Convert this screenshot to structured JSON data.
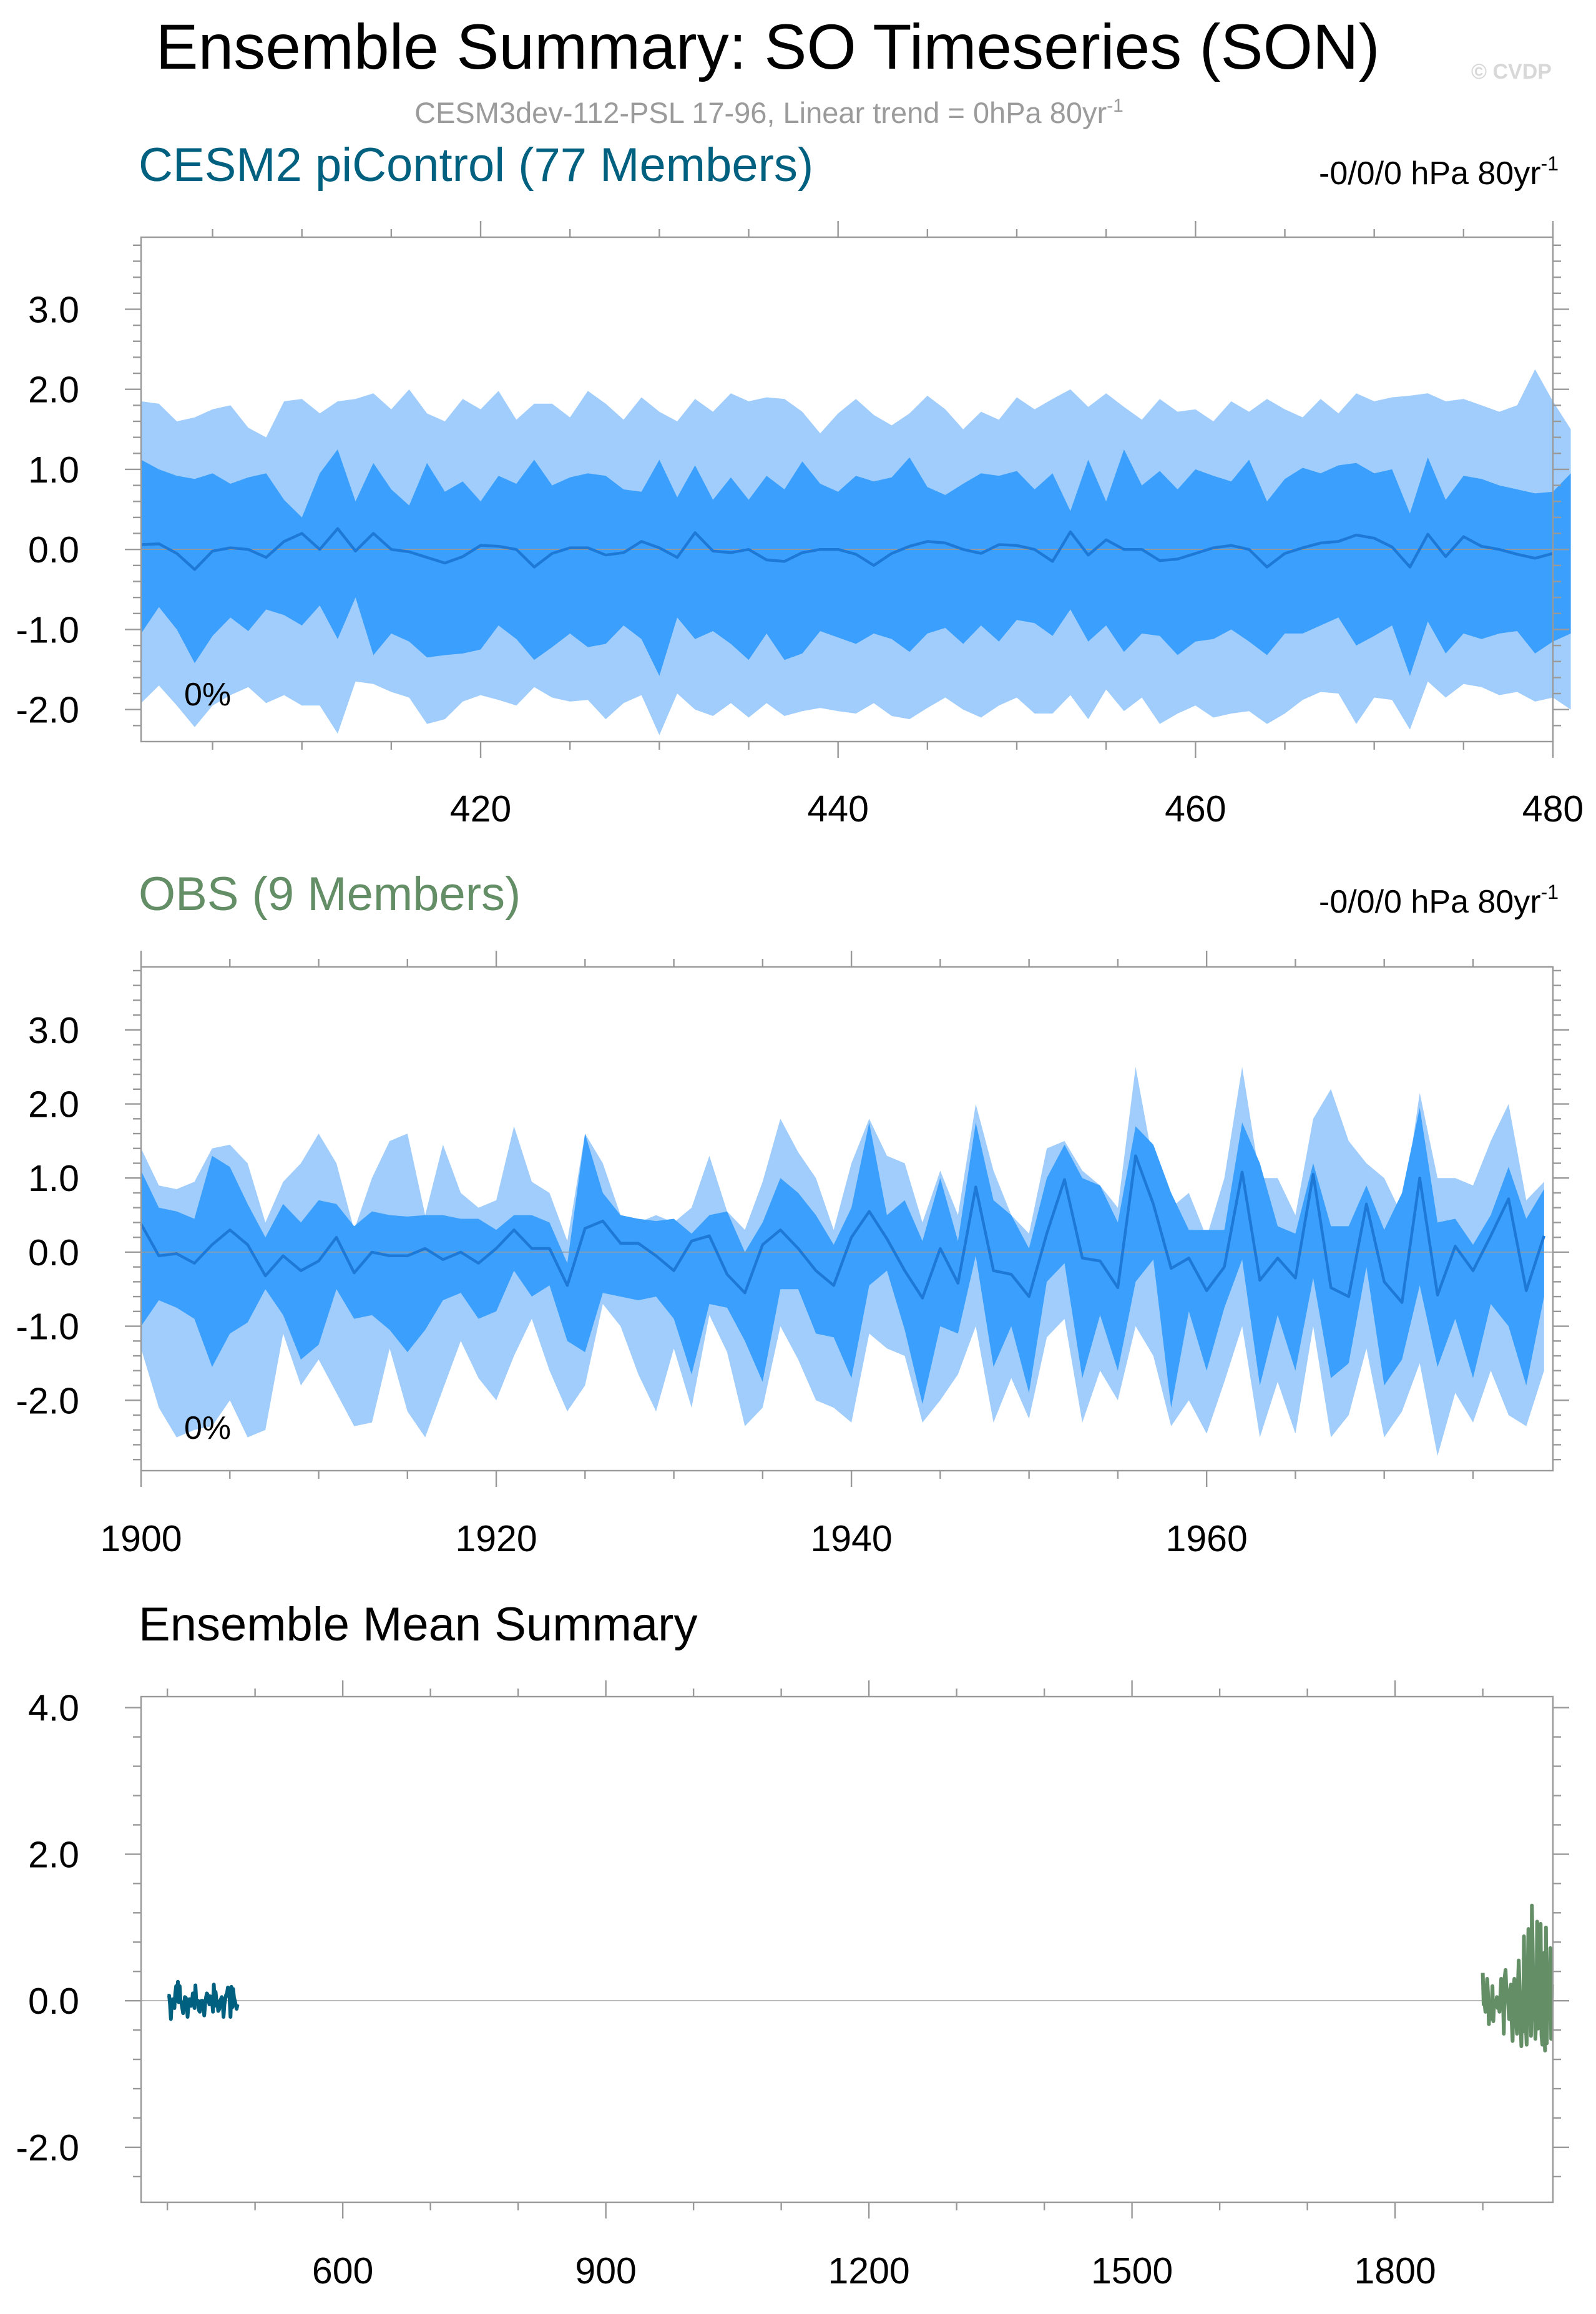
{
  "title": "Ensemble Summary: SO Timeseries (SON)",
  "subtitle": "CESM3dev-112-PSL 17-96, Linear trend = 0hPa 80yr",
  "subtitle_sup": "-1",
  "watermark": "© CVDP",
  "chart_data": [
    {
      "type": "area",
      "title": "CESM2 piControl (77 Members)",
      "title_color": "#00607f",
      "trend_label": "-0/0/0 hPa 80yr",
      "trend_sup": "-1",
      "percent_label": "0%",
      "xlim": [
        401,
        480
      ],
      "ylim": [
        -2.4,
        3.9
      ],
      "x_ticks": [
        420,
        440,
        460,
        480
      ],
      "x_ticklabels": [
        "420",
        "440",
        "460",
        "480"
      ],
      "y_ticks": [
        3.0,
        2.0,
        1.0,
        0.0,
        -1.0,
        -2.0
      ],
      "y_ticklabels": [
        "3.0",
        "2.0",
        "1.0",
        "0.0",
        "-1.0",
        "-2.0"
      ],
      "x_start": 401,
      "colors": {
        "outer": "#a0cdfb",
        "inner": "#3ba0fd",
        "mean": "#1e78d6"
      },
      "series": [
        {
          "name": "mean",
          "values": [
            0.06,
            0.07,
            -0.05,
            -0.25,
            -0.02,
            0.02,
            0.0,
            -0.1,
            0.1,
            0.2,
            0.0,
            0.26,
            -0.02,
            0.2,
            0.0,
            -0.03,
            -0.1,
            -0.17,
            -0.09,
            0.05,
            0.04,
            0.0,
            -0.22,
            -0.05,
            0.02,
            0.02,
            -0.07,
            -0.04,
            0.1,
            0.02,
            -0.1,
            0.21,
            -0.02,
            -0.04,
            0.0,
            -0.13,
            -0.15,
            -0.04,
            0.0,
            0.0,
            -0.06,
            -0.2,
            -0.05,
            0.04,
            0.1,
            0.08,
            0.0,
            -0.05,
            0.06,
            0.05,
            0.0,
            -0.15,
            0.22,
            -0.07,
            0.12,
            0.0,
            0.0,
            -0.14,
            -0.12,
            -0.05,
            0.02,
            0.05,
            0.0,
            -0.22,
            -0.05,
            0.02,
            0.08,
            0.1,
            0.18,
            0.14,
            0.03,
            -0.22,
            0.19,
            -0.09,
            0.16,
            0.04,
            0.0,
            -0.06,
            -0.11,
            -0.05
          ]
        },
        {
          "name": "outer_upper",
          "values": [
            1.85,
            1.82,
            1.6,
            1.65,
            1.75,
            1.8,
            1.52,
            1.4,
            1.85,
            1.88,
            1.7,
            1.85,
            1.88,
            1.95,
            1.75,
            2.0,
            1.7,
            1.6,
            1.88,
            1.75,
            1.98,
            1.62,
            1.82,
            1.82,
            1.65,
            1.98,
            1.82,
            1.62,
            1.9,
            1.72,
            1.6,
            1.88,
            1.72,
            1.95,
            1.85,
            1.9,
            1.88,
            1.72,
            1.45,
            1.7,
            1.88,
            1.68,
            1.55,
            1.7,
            1.92,
            1.75,
            1.5,
            1.72,
            1.62,
            1.9,
            1.75,
            1.88,
            2.0,
            1.78,
            1.95,
            1.78,
            1.62,
            1.88,
            1.72,
            1.75,
            1.6,
            1.85,
            1.72,
            1.88,
            1.75,
            1.65,
            1.88,
            1.7,
            1.95,
            1.85,
            1.9,
            1.92,
            1.95,
            1.85,
            1.88,
            1.8,
            1.72,
            1.8,
            2.25,
            1.85,
            1.5
          ]
        },
        {
          "name": "inner_upper",
          "values": [
            1.12,
            1.0,
            0.92,
            0.88,
            0.95,
            0.82,
            0.9,
            0.95,
            0.62,
            0.4,
            0.95,
            1.25,
            0.6,
            1.08,
            0.75,
            0.55,
            1.08,
            0.72,
            0.85,
            0.6,
            0.92,
            0.82,
            1.12,
            0.8,
            0.9,
            0.95,
            0.92,
            0.75,
            0.72,
            1.12,
            0.65,
            1.05,
            0.62,
            0.9,
            0.62,
            0.92,
            0.75,
            1.1,
            0.82,
            0.72,
            0.92,
            0.85,
            0.9,
            1.15,
            0.78,
            0.68,
            0.82,
            0.95,
            0.92,
            0.98,
            0.75,
            0.95,
            0.48,
            1.12,
            0.6,
            1.25,
            0.8,
            0.98,
            0.75,
            1.0,
            0.92,
            0.85,
            1.12,
            0.6,
            0.88,
            1.02,
            0.95,
            1.05,
            1.08,
            0.95,
            1.0,
            0.45,
            1.15,
            0.62,
            0.92,
            0.88,
            0.8,
            0.75,
            0.7,
            0.72,
            0.95
          ]
        },
        {
          "name": "inner_lower",
          "values": [
            -1.05,
            -0.72,
            -1.0,
            -1.42,
            -1.08,
            -0.85,
            -1.02,
            -0.75,
            -0.82,
            -0.95,
            -0.7,
            -1.12,
            -0.6,
            -1.32,
            -1.05,
            -1.15,
            -1.35,
            -1.32,
            -1.3,
            -1.25,
            -0.95,
            -1.12,
            -1.38,
            -1.22,
            -1.05,
            -1.22,
            -1.18,
            -0.95,
            -1.12,
            -1.58,
            -0.85,
            -1.12,
            -1.02,
            -1.18,
            -1.38,
            -1.05,
            -1.38,
            -1.3,
            -1.02,
            -1.1,
            -1.18,
            -1.05,
            -1.12,
            -1.28,
            -1.05,
            -0.98,
            -1.18,
            -0.95,
            -1.15,
            -0.88,
            -0.92,
            -1.08,
            -0.75,
            -1.15,
            -0.95,
            -1.28,
            -1.05,
            -1.08,
            -1.32,
            -1.15,
            -1.12,
            -1.0,
            -1.15,
            -1.32,
            -1.05,
            -1.05,
            -0.95,
            -0.85,
            -1.2,
            -1.08,
            -0.95,
            -1.58,
            -0.9,
            -1.3,
            -1.05,
            -1.12,
            -1.05,
            -1.02,
            -1.3,
            -1.15,
            -1.05
          ]
        },
        {
          "name": "outer_lower",
          "values": [
            -1.92,
            -1.7,
            -1.95,
            -2.22,
            -1.95,
            -1.82,
            -1.72,
            -1.92,
            -1.82,
            -1.95,
            -1.95,
            -2.3,
            -1.65,
            -1.68,
            -1.78,
            -1.85,
            -2.18,
            -2.12,
            -1.9,
            -1.82,
            -1.88,
            -1.95,
            -1.72,
            -1.85,
            -1.9,
            -1.88,
            -2.12,
            -1.92,
            -1.82,
            -2.32,
            -1.8,
            -2.0,
            -2.08,
            -1.92,
            -2.1,
            -1.92,
            -2.08,
            -2.02,
            -1.98,
            -2.02,
            -2.05,
            -1.92,
            -2.08,
            -2.12,
            -1.98,
            -1.85,
            -2.0,
            -2.1,
            -1.95,
            -1.85,
            -2.05,
            -2.05,
            -1.82,
            -2.12,
            -1.75,
            -2.02,
            -1.85,
            -2.18,
            -2.05,
            -1.95,
            -2.1,
            -2.05,
            -2.02,
            -2.18,
            -2.05,
            -1.88,
            -1.78,
            -1.8,
            -2.18,
            -1.85,
            -1.88,
            -2.25,
            -1.65,
            -1.85,
            -1.68,
            -1.72,
            -1.82,
            -1.78,
            -1.9,
            -1.85,
            -2.0
          ]
        }
      ]
    },
    {
      "type": "area",
      "title": "OBS (9 Members)",
      "title_color": "#638e66",
      "trend_label": "-0/0/0 hPa 80yr",
      "trend_sup": "-1",
      "percent_label": "0%",
      "xlim": [
        1900,
        1979.5
      ],
      "ylim": [
        -2.95,
        3.85
      ],
      "x_ticks": [
        1900,
        1920,
        1940,
        1960
      ],
      "x_ticklabels": [
        "1900",
        "1920",
        "1940",
        "1960"
      ],
      "y_ticks": [
        3.0,
        2.0,
        1.0,
        0.0,
        -1.0,
        -2.0
      ],
      "y_ticklabels": [
        "3.0",
        "2.0",
        "1.0",
        "0.0",
        "-1.0",
        "-2.0"
      ],
      "x_start": 1900,
      "colors": {
        "outer": "#a0cdfb",
        "inner": "#3ba0fd",
        "mean": "#1e78d6"
      },
      "series": [
        {
          "name": "mean",
          "values": [
            0.38,
            -0.05,
            -0.02,
            -0.15,
            0.1,
            0.3,
            0.1,
            -0.32,
            -0.05,
            -0.25,
            -0.12,
            0.2,
            -0.28,
            0.0,
            -0.05,
            -0.05,
            0.05,
            -0.1,
            0.0,
            -0.15,
            0.05,
            0.3,
            0.05,
            0.05,
            -0.45,
            0.32,
            0.42,
            0.12,
            0.12,
            -0.05,
            -0.25,
            0.15,
            0.22,
            -0.3,
            -0.55,
            0.1,
            0.3,
            0.05,
            -0.25,
            -0.45,
            0.2,
            0.55,
            0.18,
            -0.25,
            -0.62,
            0.05,
            -0.42,
            0.88,
            -0.25,
            -0.3,
            -0.6,
            0.25,
            0.98,
            -0.08,
            -0.12,
            -0.48,
            1.3,
            0.65,
            -0.22,
            -0.08,
            -0.52,
            -0.2,
            1.08,
            -0.38,
            -0.08,
            -0.35,
            1.05,
            -0.48,
            -0.6,
            0.65,
            -0.4,
            -0.68,
            1.0,
            -0.58,
            0.08,
            -0.25,
            0.22,
            0.72,
            -0.52,
            0.22
          ]
        },
        {
          "name": "outer_upper",
          "values": [
            1.4,
            0.9,
            0.85,
            0.95,
            1.4,
            1.45,
            1.2,
            0.4,
            0.95,
            1.2,
            1.6,
            1.2,
            0.3,
            1.0,
            1.5,
            1.6,
            0.5,
            1.45,
            0.8,
            0.6,
            0.7,
            1.7,
            0.95,
            0.8,
            0.15,
            1.6,
            1.2,
            0.5,
            0.4,
            0.5,
            0.4,
            0.6,
            1.3,
            0.55,
            0.3,
            0.95,
            1.8,
            1.35,
            1.0,
            0.3,
            1.2,
            1.8,
            1.3,
            1.2,
            0.4,
            1.1,
            0.5,
            2.0,
            1.1,
            0.5,
            0.25,
            1.4,
            1.5,
            1.1,
            0.9,
            0.6,
            2.5,
            1.2,
            0.6,
            0.8,
            0.2,
            1.0,
            2.5,
            1.0,
            1.0,
            0.5,
            1.8,
            2.2,
            1.5,
            1.2,
            1.0,
            0.5,
            2.15,
            1.0,
            1.0,
            0.9,
            1.5,
            2.0,
            0.7,
            0.95
          ]
        },
        {
          "name": "inner_upper",
          "values": [
            1.1,
            0.6,
            0.55,
            0.45,
            1.3,
            1.15,
            0.65,
            0.2,
            0.65,
            0.4,
            0.7,
            0.65,
            0.35,
            0.55,
            0.5,
            0.48,
            0.5,
            0.5,
            0.45,
            0.45,
            0.3,
            0.5,
            0.5,
            0.4,
            -0.15,
            1.6,
            0.8,
            0.5,
            0.45,
            0.42,
            0.45,
            0.25,
            0.5,
            0.55,
            0.0,
            0.4,
            1.0,
            0.8,
            0.5,
            0.1,
            0.6,
            1.75,
            0.5,
            0.7,
            0.15,
            1.0,
            0.15,
            1.75,
            0.7,
            0.5,
            0.05,
            1.0,
            1.45,
            1.0,
            0.9,
            0.4,
            1.7,
            1.45,
            0.8,
            0.3,
            0.3,
            0.3,
            1.75,
            1.2,
            0.35,
            0.25,
            1.2,
            0.35,
            0.35,
            0.9,
            0.3,
            0.8,
            1.95,
            0.4,
            0.45,
            0.1,
            0.5,
            1.15,
            0.45,
            0.85
          ]
        },
        {
          "name": "inner_lower",
          "values": [
            -1.0,
            -0.65,
            -0.75,
            -0.9,
            -1.55,
            -1.1,
            -0.95,
            -0.5,
            -0.85,
            -1.45,
            -1.25,
            -0.5,
            -0.9,
            -0.85,
            -1.05,
            -1.35,
            -1.05,
            -0.65,
            -0.55,
            -0.9,
            -0.8,
            -0.25,
            -0.6,
            -0.45,
            -1.2,
            -1.35,
            -0.55,
            -0.6,
            -0.65,
            -0.6,
            -0.9,
            -1.65,
            -0.7,
            -0.75,
            -1.2,
            -1.75,
            -0.5,
            -0.5,
            -1.1,
            -1.15,
            -1.7,
            -0.45,
            -0.25,
            -1.05,
            -2.05,
            -1.0,
            -1.1,
            -0.05,
            -1.55,
            -1.0,
            -1.9,
            -0.4,
            -0.15,
            -1.7,
            -0.85,
            -1.6,
            -0.4,
            -0.1,
            -2.1,
            -0.8,
            -1.6,
            -0.75,
            -0.1,
            -1.8,
            -0.85,
            -1.6,
            -0.35,
            -1.7,
            -1.5,
            -0.2,
            -1.8,
            -1.45,
            -0.45,
            -1.55,
            -0.9,
            -1.7,
            -0.7,
            -1.0,
            -1.8,
            -0.6
          ]
        },
        {
          "name": "outer_lower",
          "values": [
            -1.3,
            -2.1,
            -2.5,
            -2.4,
            -2.35,
            -2.0,
            -2.5,
            -2.4,
            -1.1,
            -1.8,
            -1.45,
            -1.9,
            -2.35,
            -2.3,
            -1.3,
            -2.15,
            -2.5,
            -1.85,
            -1.2,
            -1.7,
            -2.0,
            -1.4,
            -0.9,
            -1.6,
            -2.15,
            -1.8,
            -0.7,
            -1.0,
            -1.65,
            -2.15,
            -1.3,
            -2.1,
            -0.85,
            -1.35,
            -2.35,
            -2.1,
            -1.0,
            -1.45,
            -2.0,
            -2.1,
            -2.3,
            -1.1,
            -1.3,
            -1.4,
            -2.3,
            -2.0,
            -1.65,
            -1.0,
            -2.3,
            -1.7,
            -2.25,
            -1.15,
            -0.9,
            -2.3,
            -1.6,
            -2.0,
            -1.0,
            -1.4,
            -2.35,
            -2.0,
            -2.45,
            -1.75,
            -1.0,
            -2.5,
            -1.75,
            -2.45,
            -1.0,
            -2.5,
            -2.2,
            -1.3,
            -2.5,
            -2.15,
            -1.5,
            -2.75,
            -1.9,
            -2.3,
            -1.6,
            -2.2,
            -2.35,
            -1.6
          ]
        }
      ]
    },
    {
      "type": "line",
      "title": "Ensemble Mean Summary",
      "xlim": [
        370,
        1980
      ],
      "ylim": [
        -2.75,
        4.15
      ],
      "x_ticks": [
        600,
        900,
        1200,
        1500,
        1800
      ],
      "x_ticklabels": [
        "600",
        "900",
        "1200",
        "1500",
        "1800"
      ],
      "y_ticks": [
        4.0,
        2.0,
        0.0,
        -2.0
      ],
      "y_ticklabels": [
        "4.0",
        "2.0",
        "0.0",
        "-2.0"
      ],
      "series": [
        {
          "name": "CESM2 piControl",
          "color": "#00607f",
          "x_start": 401,
          "use_series_of_chart": 0
        },
        {
          "name": "OBS",
          "color": "#638e66",
          "x_start": 1900,
          "use_series_of_chart": 1
        }
      ]
    }
  ]
}
